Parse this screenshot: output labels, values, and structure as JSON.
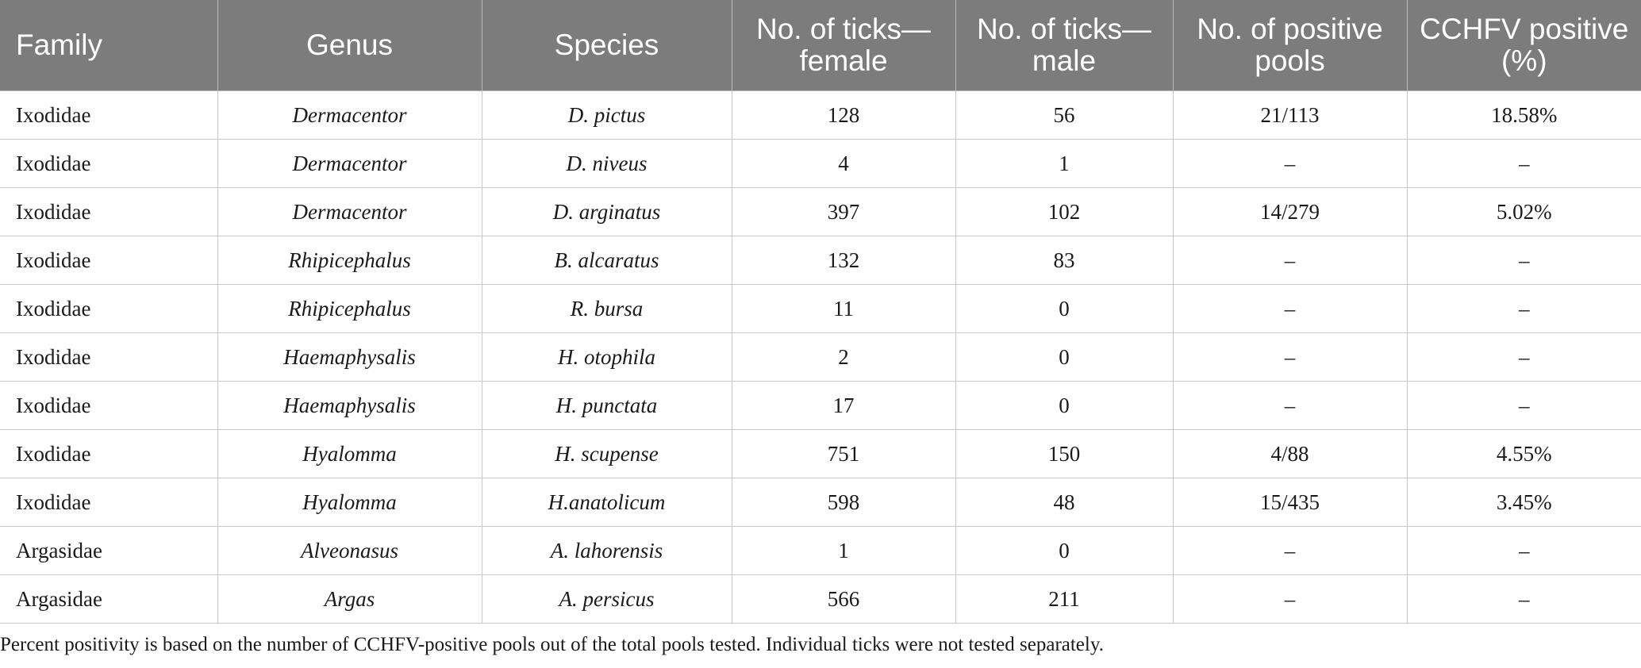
{
  "table": {
    "headers": [
      "Family",
      "Genus",
      "Species",
      "No. of ticks—female",
      "No. of ticks—male",
      "No. of positive pools",
      "CCHFV positive (%)"
    ],
    "rows": [
      [
        "Ixodidae",
        "Dermacentor",
        "D. pictus",
        "128",
        "56",
        "21/113",
        "18.58%"
      ],
      [
        "Ixodidae",
        "Dermacentor",
        "D. niveus",
        "4",
        "1",
        "–",
        "–"
      ],
      [
        "Ixodidae",
        "Dermacentor",
        "D. arginatus",
        "397",
        "102",
        "14/279",
        "5.02%"
      ],
      [
        "Ixodidae",
        "Rhipicephalus",
        "B. alcaratus",
        "132",
        "83",
        "–",
        "–"
      ],
      [
        "Ixodidae",
        "Rhipicephalus",
        "R. bursa",
        "11",
        "0",
        "–",
        "–"
      ],
      [
        "Ixodidae",
        "Haemaphysalis",
        "H. otophila",
        "2",
        "0",
        "–",
        "–"
      ],
      [
        "Ixodidae",
        "Haemaphysalis",
        "H. punctata",
        "17",
        "0",
        "–",
        "–"
      ],
      [
        "Ixodidae",
        "Hyalomma",
        "H. scupense",
        "751",
        "150",
        "4/88",
        "4.55%"
      ],
      [
        "Ixodidae",
        "Hyalomma",
        "H.anatolicum",
        "598",
        "48",
        "15/435",
        "3.45%"
      ],
      [
        "Argasidae",
        "Alveonasus",
        "A. lahorensis",
        "1",
        "0",
        "–",
        "–"
      ],
      [
        "Argasidae",
        "Argas",
        "A. persicus",
        "566",
        "211",
        "–",
        "–"
      ]
    ]
  },
  "footnote": "Percent positivity is based on the number of CCHFV-positive pools out of the total pools tested. Individual ticks were not tested separately.",
  "colors": {
    "header_bg": "#7b7c7b",
    "header_text": "#ffffff",
    "grid_line": "#c8c8c8"
  }
}
